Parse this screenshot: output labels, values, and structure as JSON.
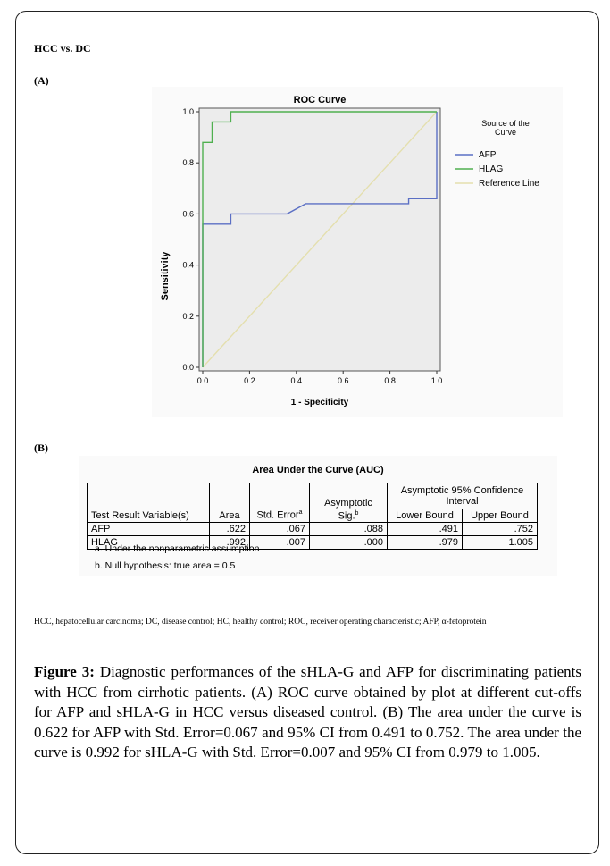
{
  "headings": {
    "main": "HCC vs. DC",
    "panel_a": "(A)",
    "panel_b": "(B)"
  },
  "chart_data": {
    "type": "line",
    "title": "ROC Curve",
    "xlabel": "1 - Specificity",
    "ylabel": "Sensitivity",
    "xlim": [
      0,
      1
    ],
    "ylim": [
      0,
      1
    ],
    "x_ticks": [
      "0.0",
      "0.2",
      "0.4",
      "0.6",
      "0.8",
      "1.0"
    ],
    "y_ticks": [
      "0.0",
      "0.2",
      "0.4",
      "0.6",
      "0.8",
      "1.0"
    ],
    "legend_title": "Source of the Curve",
    "legend_position": "right",
    "grid": false,
    "series": [
      {
        "name": "AFP",
        "color": "#5b6fc4",
        "points": [
          [
            0,
            0
          ],
          [
            0,
            0.56
          ],
          [
            0.12,
            0.56
          ],
          [
            0.12,
            0.6
          ],
          [
            0.36,
            0.6
          ],
          [
            0.44,
            0.64
          ],
          [
            0.88,
            0.64
          ],
          [
            0.88,
            0.66
          ],
          [
            1,
            0.66
          ],
          [
            1,
            1
          ]
        ]
      },
      {
        "name": "HLAG",
        "color": "#4fb04f",
        "points": [
          [
            0,
            0
          ],
          [
            0,
            0.88
          ],
          [
            0.04,
            0.88
          ],
          [
            0.04,
            0.96
          ],
          [
            0.12,
            0.96
          ],
          [
            0.12,
            1
          ],
          [
            1,
            1
          ]
        ]
      },
      {
        "name": "Reference Line",
        "color": "#e4dfae",
        "points": [
          [
            0,
            0
          ],
          [
            1,
            1
          ]
        ]
      }
    ]
  },
  "auc_table": {
    "title": "Area Under the Curve (AUC)",
    "headers": {
      "variable": "Test Result Variable(s)",
      "area": "Area",
      "std_error": "Std. Error",
      "std_error_sup": "a",
      "sig": "Asymptotic Sig.",
      "sig_sup": "b",
      "ci_group": "Asymptotic 95% Confidence Interval",
      "lower": "Lower Bound",
      "upper": "Upper Bound"
    },
    "rows": [
      {
        "variable": "AFP",
        "area": ".622",
        "std_error": ".067",
        "sig": ".088",
        "lower": ".491",
        "upper": ".752"
      },
      {
        "variable": "HLAG",
        "area": ".992",
        "std_error": ".007",
        "sig": ".000",
        "lower": ".979",
        "upper": "1.005"
      }
    ],
    "notes": [
      "a. Under the nonparametric assumption",
      "b. Null hypothesis: true area = 0.5"
    ]
  },
  "abbreviations": "HCC, hepatocellular carcinoma; DC, disease control; HC, healthy control; ROC, receiver operating characteristic; AFP, α-fetoprotein",
  "caption": {
    "label": "Figure 3:",
    "text": " Diagnostic performances of the sHLA-G and AFP for discriminating patients with HCC from cirrhotic patients. (A) ROC curve obtained by plot at different cut-offs for AFP and sHLA-G in HCC versus diseased control. (B) The area under the curve is 0.622 for AFP with Std. Error=0.067 and 95% CI from 0.491 to 0.752. The area under the curve is 0.992 for sHLA-G with Std. Error=0.007 and 95% CI from 0.979 to 1.005."
  }
}
